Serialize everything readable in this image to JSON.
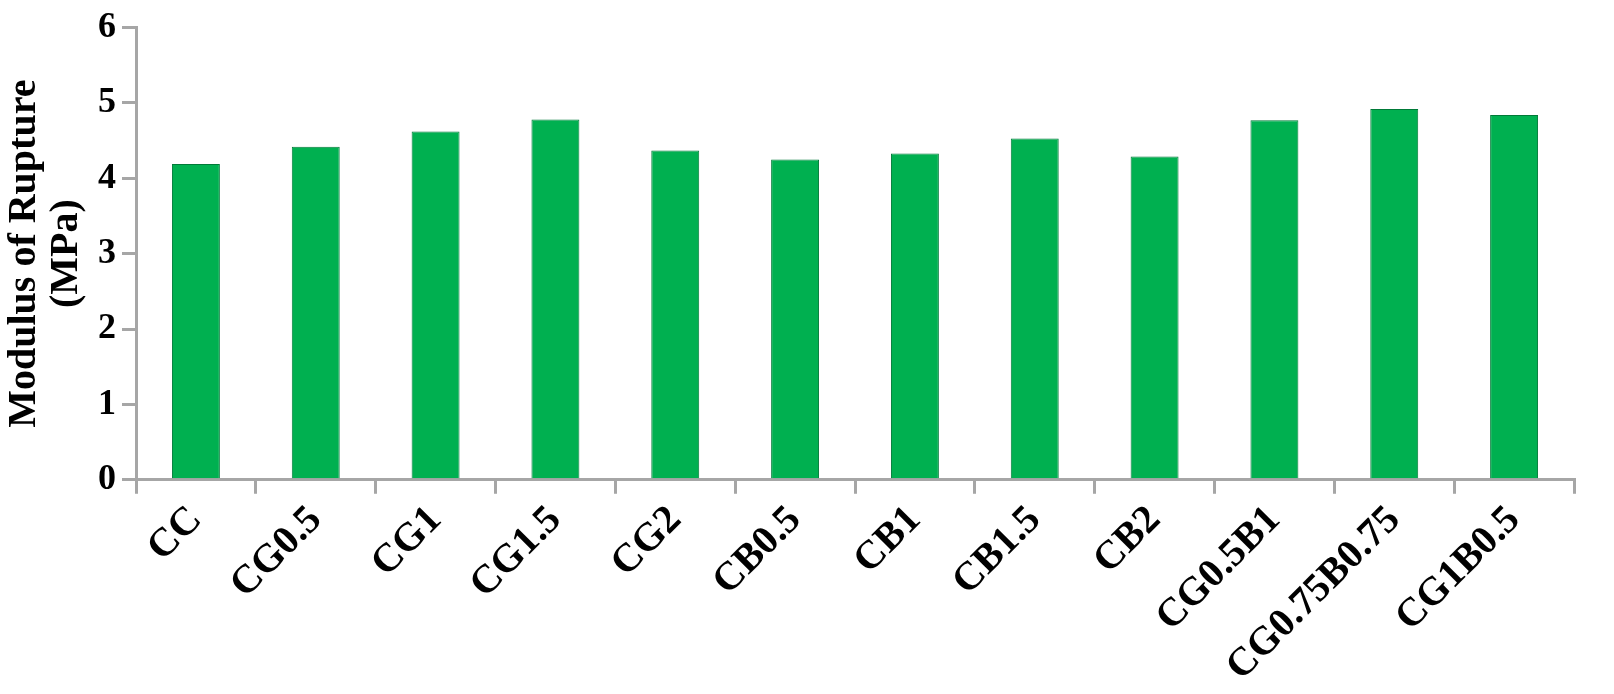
{
  "chart_data": {
    "type": "bar",
    "ylabel": "Modulus of Rupture (MPa)",
    "categories": [
      "CC",
      "CG0.5",
      "CG1",
      "CG1.5",
      "CG2",
      "CB0.5",
      "CB1",
      "CB1.5",
      "CB2",
      "CG0.5B1",
      "CG0.75B0.75",
      "CG1B0.5"
    ],
    "values": [
      4.19,
      4.42,
      4.62,
      4.78,
      4.37,
      4.25,
      4.33,
      4.53,
      4.29,
      4.77,
      4.92,
      4.84
    ],
    "color": "#00b050",
    "ylim": [
      0,
      6
    ],
    "yticks": [
      0,
      1,
      2,
      3,
      4,
      5,
      6
    ],
    "grid": false,
    "legend": false
  }
}
